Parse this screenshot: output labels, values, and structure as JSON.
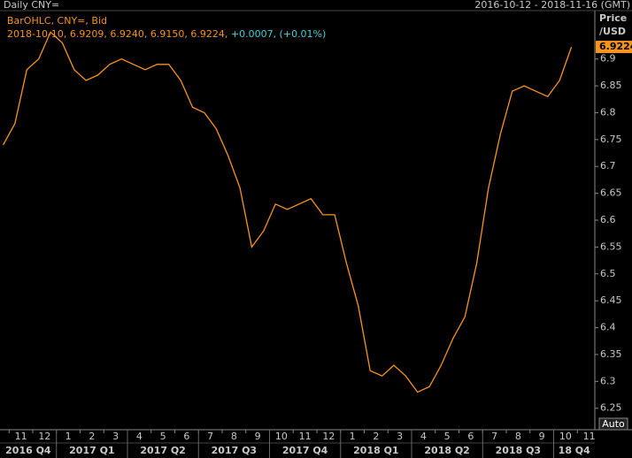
{
  "chart_data": {
    "type": "line",
    "title": "Daily CNY=",
    "date_range": "2016-10-12 - 2018-11-16 (GMT)",
    "legend_title": "BarOHLC, CNY=, Bid",
    "legend_values": "2018-10-10, 6.9209, 6.9240, 6.9150, 6.9224,",
    "legend_change": "+0.0007, (+0.01%)",
    "axis_label": [
      "Price",
      "/USD"
    ],
    "last_value_label": "6.9224",
    "auto_button": "Auto",
    "categories": [
      null,
      "11",
      null,
      "12",
      null,
      "1",
      null,
      "2",
      null,
      "3",
      null,
      "4",
      null,
      "5",
      null,
      "6",
      null,
      "7",
      null,
      "8",
      null,
      "9",
      null,
      "10",
      null,
      "11",
      null,
      "12",
      null,
      "1",
      null,
      "2",
      null,
      "3",
      null,
      "4",
      null,
      "5",
      null,
      "6",
      null,
      "7",
      null,
      "8",
      null,
      "9",
      null,
      "10",
      null,
      "11",
      null
    ],
    "quarters": [
      "2016 Q4",
      "2017 Q1",
      "2017 Q2",
      "2017 Q3",
      "2017 Q4",
      "2018 Q1",
      "2018 Q2",
      "2018 Q3",
      "18 Q4"
    ],
    "series": [
      {
        "name": "CNY=",
        "color": "#f7941d",
        "values": [
          6.74,
          6.78,
          6.88,
          6.9,
          6.95,
          6.93,
          6.88,
          6.86,
          6.87,
          6.89,
          6.9,
          6.89,
          6.88,
          6.89,
          6.89,
          6.86,
          6.81,
          6.8,
          6.77,
          6.72,
          6.66,
          6.55,
          6.58,
          6.63,
          6.62,
          6.63,
          6.64,
          6.61,
          6.61,
          6.52,
          6.44,
          6.32,
          6.31,
          6.33,
          6.31,
          6.28,
          6.29,
          6.33,
          6.38,
          6.42,
          6.52,
          6.66,
          6.76,
          6.84,
          6.85,
          6.84,
          6.83,
          6.86,
          6.9224,
          null,
          null
        ]
      }
    ],
    "ylim": [
      6.21,
      6.99
    ],
    "yticks": [
      6.25,
      6.3,
      6.35,
      6.4,
      6.45,
      6.5,
      6.55,
      6.6,
      6.65,
      6.7,
      6.75,
      6.8,
      6.85,
      6.9
    ]
  }
}
